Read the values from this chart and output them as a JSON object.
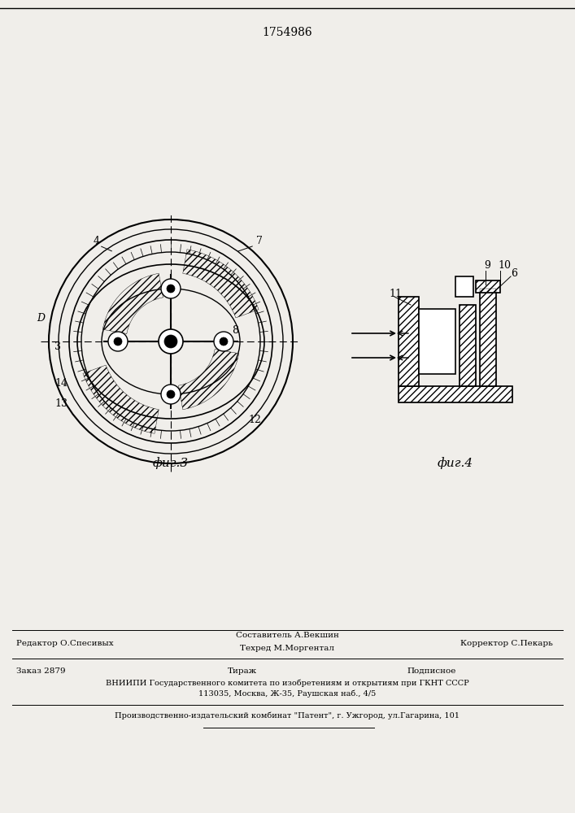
{
  "patent_number": "1754986",
  "fig3_label": "фиг.3",
  "fig4_label": "фиг.4",
  "editor_line": "Редактор О.Спесивых",
  "composer_line1": "Составитель А.Векшин",
  "composer_line2": "Техред М.Моргентал",
  "corrector_line": "Корректор С.Пекарь",
  "order_line": "Заказ 2879",
  "tirazh_line": "Тираж",
  "podpisnoe_line": "Подписное",
  "vniiipi_line1": "ВНИИПИ Государственного комитета по изобретениям и открытиям при ГКНТ СССР",
  "vniiipi_line2": "113035, Москва, Ж-35, Раушская наб., 4/5",
  "factory_line": "Производственно-издательский комбинат \"Патент\", г. Ужгород, ул.Гагарина, 101",
  "bg_color": "#e8e8e8",
  "paper_color": "#f0eeea"
}
